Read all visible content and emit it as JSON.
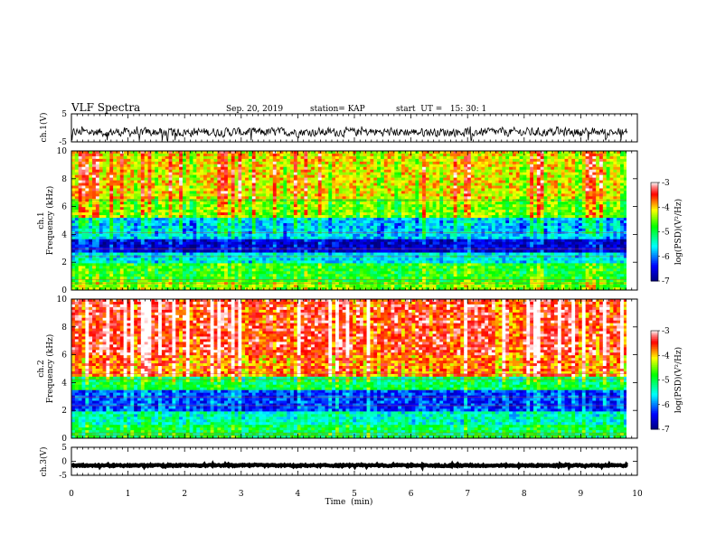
{
  "header": {
    "title": "VLF Spectra",
    "date": "Sep. 20, 2019",
    "station": "station= KAP",
    "start": "start  UT =   15: 30: 1"
  },
  "chart_data": [
    {
      "type": "line",
      "name": "ch1-waveform",
      "ylabel": "ch.1(V)",
      "ylim": [
        -5,
        5
      ],
      "y_ticks": [
        "5",
        "-5"
      ],
      "xlim": [
        0,
        10
      ],
      "signal": {
        "center_v": -1.5,
        "range_v": [
          -4.5,
          0.5
        ]
      }
    },
    {
      "type": "heatmap",
      "name": "ch1-spectrogram",
      "ylabel_line1": "ch.1",
      "ylabel_line2": "Frequency (kHz)",
      "ylim": [
        0,
        10
      ],
      "y_ticks": [
        "0",
        "2",
        "4",
        "6",
        "8",
        "10"
      ],
      "xlim": [
        0,
        10
      ],
      "colorbar": {
        "label": "log(PSD)(V²/Hz)",
        "range": [
          -7,
          -3
        ],
        "ticks": [
          "-3",
          "-4",
          "-5",
          "-6",
          "-7"
        ]
      },
      "bands_khz": [
        {
          "range": [
            0,
            0.5
          ],
          "level": -4.5
        },
        {
          "range": [
            0.5,
            2
          ],
          "level": -4.8
        },
        {
          "range": [
            2,
            2.6
          ],
          "level": -5.6
        },
        {
          "range": [
            2.6,
            3.6
          ],
          "level": -6.6
        },
        {
          "range": [
            3.6,
            5.2
          ],
          "level": -5.7
        },
        {
          "range": [
            5.2,
            6.5
          ],
          "level": -4.5
        },
        {
          "range": [
            6.5,
            10
          ],
          "level": -4.1
        }
      ]
    },
    {
      "type": "heatmap",
      "name": "ch2-spectrogram",
      "ylabel_line1": "ch.2",
      "ylabel_line2": "Frequency (kHz)",
      "ylim": [
        0,
        10
      ],
      "y_ticks": [
        "0",
        "2",
        "4",
        "6",
        "8",
        "10"
      ],
      "xlim": [
        0,
        10
      ],
      "colorbar": {
        "label": "log(PSD)(V²/Hz)",
        "range": [
          -7,
          -3
        ],
        "ticks": [
          "-3",
          "-4",
          "-5",
          "-6",
          "-7"
        ]
      },
      "bands_khz": [
        {
          "range": [
            0,
            1
          ],
          "level": -5.0
        },
        {
          "range": [
            1,
            2
          ],
          "level": -5.4
        },
        {
          "range": [
            2,
            3.4
          ],
          "level": -6.2
        },
        {
          "range": [
            3.4,
            4.5
          ],
          "level": -5.0
        },
        {
          "range": [
            4.5,
            6
          ],
          "level": -3.7
        },
        {
          "range": [
            6,
            10
          ],
          "level": -3.4
        }
      ]
    },
    {
      "type": "line",
      "name": "ch3-waveform",
      "ylabel": "ch.3(V)",
      "ylim": [
        -5,
        5
      ],
      "y_ticks": [
        "5",
        "0",
        "-5"
      ],
      "xlim": [
        0,
        10
      ],
      "signal": {
        "center_v": -1.5,
        "range_v": [
          -1.9,
          -1.1
        ]
      }
    }
  ],
  "x_axis": {
    "label": "Time  (min)",
    "range": [
      0,
      10
    ],
    "ticks": [
      "0",
      "1",
      "2",
      "3",
      "4",
      "5",
      "6",
      "7",
      "8",
      "9",
      "10"
    ]
  },
  "colors": {
    "axis": "#000000",
    "colormap": [
      "#00007f",
      "#0000ff",
      "#00ffff",
      "#00ff00",
      "#ffff00",
      "#ff0000",
      "#ffffff"
    ]
  }
}
